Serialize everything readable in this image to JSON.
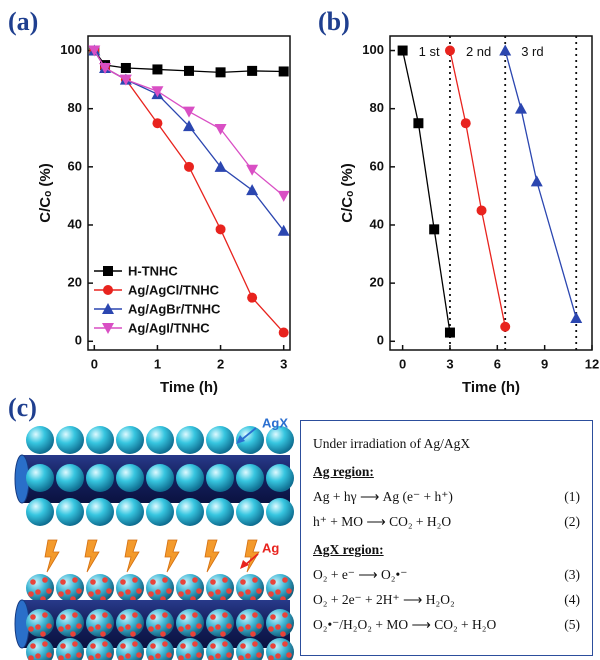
{
  "chart_data": [
    {
      "type": "line",
      "label": "(a)",
      "xlabel": "Time (h)",
      "ylabel": "C/Cₒ (%)",
      "xlim": [
        -0.1,
        3.1
      ],
      "xticks": [
        0,
        1,
        2,
        3
      ],
      "ylim": [
        -3,
        105
      ],
      "yticks": [
        0,
        20,
        40,
        60,
        80,
        100
      ],
      "legend": "lower left",
      "series": [
        {
          "name": "H-TNHC",
          "color": "#000000",
          "marker": "square",
          "x": [
            0,
            0.17,
            0.5,
            1,
            1.5,
            2,
            2.5,
            3
          ],
          "values": [
            100,
            95,
            94,
            93.5,
            93,
            92.5,
            93,
            92.8
          ]
        },
        {
          "name": "Ag/AgCl/TNHC",
          "color": "#e8231e",
          "marker": "circle",
          "x": [
            0,
            0.17,
            0.5,
            1,
            1.5,
            2,
            2.5,
            3
          ],
          "values": [
            100,
            94,
            90,
            75,
            60,
            38.5,
            15,
            3
          ]
        },
        {
          "name": "Ag/AgBr/TNHC",
          "color": "#2b46b0",
          "marker": "triangle-up",
          "x": [
            0,
            0.17,
            0.5,
            1,
            1.5,
            2,
            2.5,
            3
          ],
          "values": [
            100,
            94,
            90,
            85,
            74,
            60,
            52,
            38
          ]
        },
        {
          "name": "Ag/AgI/TNHC",
          "color": "#d94fc4",
          "marker": "triangle-down",
          "x": [
            0,
            0.17,
            0.5,
            1,
            1.5,
            2,
            2.5,
            3
          ],
          "values": [
            100,
            94,
            90,
            86,
            79,
            73,
            59,
            50
          ]
        }
      ]
    },
    {
      "type": "line",
      "label": "(b)",
      "xlabel": "Time (h)",
      "ylabel": "C/Cₒ (%)",
      "xlim": [
        -0.8,
        12
      ],
      "xticks": [
        0,
        3,
        6,
        9,
        12
      ],
      "ylim": [
        -3,
        105
      ],
      "yticks": [
        0,
        20,
        40,
        60,
        80,
        100
      ],
      "name_labels": true,
      "vlines": [
        3,
        6.5,
        11
      ],
      "series": [
        {
          "name": "1 st",
          "color": "#000000",
          "marker": "square",
          "x": [
            0,
            1,
            2,
            3
          ],
          "values": [
            100,
            75,
            38.5,
            3
          ]
        },
        {
          "name": "2 nd",
          "color": "#e8231e",
          "marker": "circle",
          "x": [
            3,
            4,
            5,
            6.5
          ],
          "values": [
            100,
            75,
            45,
            5
          ]
        },
        {
          "name": "3 rd",
          "color": "#2b46b0",
          "marker": "triangle-up",
          "x": [
            6.5,
            7.5,
            8.5,
            11
          ],
          "values": [
            100,
            80,
            55,
            8
          ]
        }
      ]
    }
  ],
  "panel_c": {
    "label": "(c)",
    "tags": [
      "AgX",
      "Ag"
    ],
    "box": {
      "title": "Under irradiation of Ag/AgX",
      "sections": [
        {
          "heading": "Ag region:",
          "equations": [
            {
              "text": "Ag + hγ ⟶ Ag (e⁻ + h⁺)",
              "number": "(1)"
            },
            {
              "text": "h⁺ + MO ⟶ CO₂ + H₂O",
              "number": "(2)"
            }
          ]
        },
        {
          "heading": "AgX region:",
          "equations": [
            {
              "text": "O₂ + e⁻ ⟶ O₂•⁻",
              "number": "(3)"
            },
            {
              "text": "O₂ + 2e⁻ + 2H⁺ ⟶ H₂O₂",
              "number": "(4)"
            },
            {
              "text": "O₂•⁻/H₂O₂ + MO ⟶ CO₂ + H₂O",
              "number": "(5)"
            }
          ]
        }
      ]
    }
  }
}
